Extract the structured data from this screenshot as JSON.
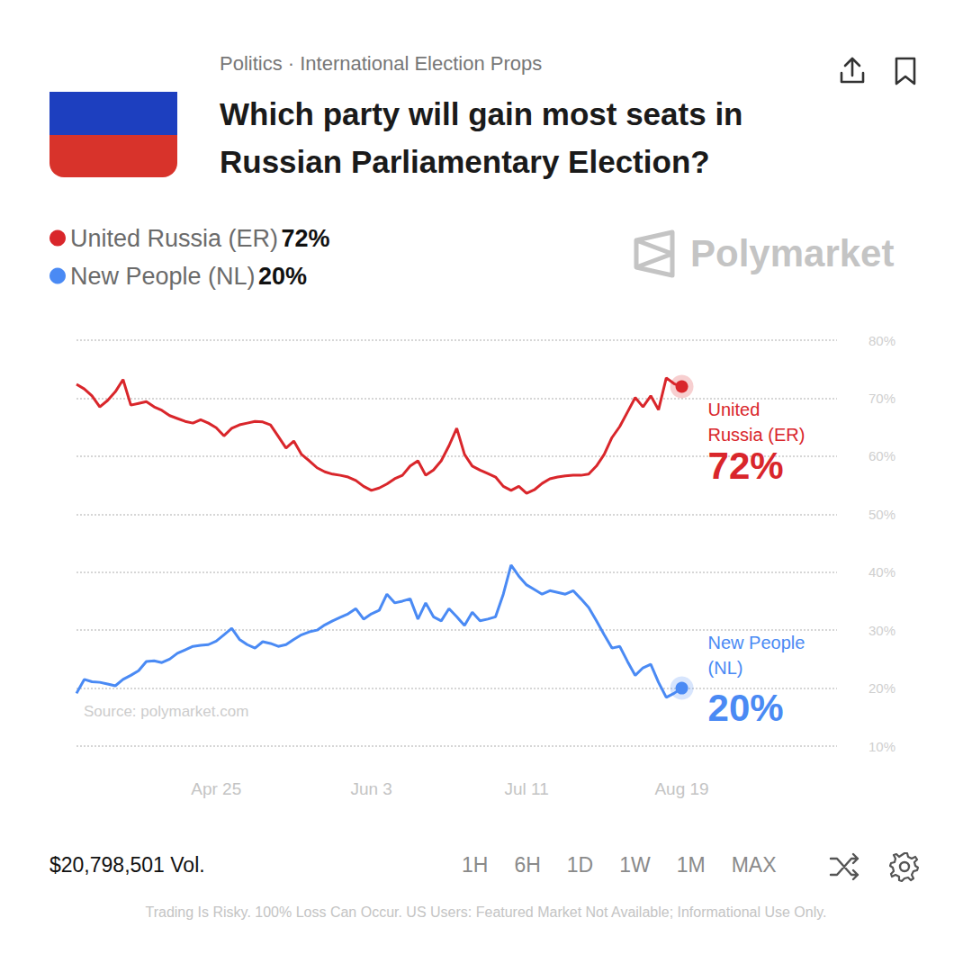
{
  "header": {
    "category": "Politics · International Election Props",
    "title": "Which party will gain most seats in Russian Parliamentary Election?"
  },
  "watermark": "Polymarket",
  "chart_data": {
    "type": "line",
    "source": "Source: polymarket.com",
    "categories": [
      null,
      null,
      null,
      null,
      null,
      null,
      null,
      null,
      null,
      null,
      null,
      null,
      null,
      null,
      null,
      null,
      null,
      null,
      "Apr 25",
      null,
      null,
      null,
      null,
      null,
      null,
      null,
      null,
      null,
      null,
      null,
      null,
      null,
      null,
      null,
      null,
      null,
      null,
      null,
      "Jun 3",
      null,
      null,
      null,
      null,
      null,
      null,
      null,
      null,
      null,
      null,
      null,
      null,
      null,
      null,
      null,
      null,
      null,
      null,
      null,
      "Jul 11",
      null,
      null,
      null,
      null,
      null,
      null,
      null,
      null,
      null,
      null,
      null,
      null,
      null,
      null,
      null,
      null,
      null,
      null,
      null,
      "Aug 19",
      null,
      null,
      null,
      null,
      null,
      null,
      null,
      null,
      null,
      null,
      null,
      null,
      null,
      null,
      null,
      null,
      null,
      null,
      null,
      null
    ],
    "series": [
      {
        "name": "United Russia (ER)",
        "color": "#d9262b",
        "current": {
          "value": 72,
          "label": "72%"
        },
        "values": [
          72.4,
          71.6,
          70.4,
          68.5,
          69.6,
          71.1,
          73.2,
          68.8,
          69.1,
          69.4,
          68.5,
          67.9,
          67.0,
          66.5,
          66.0,
          65.7,
          66.3,
          65.7,
          64.9,
          63.5,
          64.8,
          65.4,
          65.7,
          66.0,
          65.9,
          65.4,
          63.4,
          61.4,
          62.6,
          60.3,
          59.2,
          58.0,
          57.3,
          56.9,
          56.7,
          56.4,
          55.8,
          54.8,
          54.1,
          54.5,
          55.2,
          56.1,
          56.7,
          58.3,
          59.2,
          56.7,
          57.6,
          59.2,
          61.8,
          64.8,
          60.3,
          58.3,
          57.6,
          57.0,
          56.4,
          54.8,
          54.1,
          54.8,
          53.6,
          54.2,
          55.3,
          56.1,
          56.4,
          56.6,
          56.7,
          56.7,
          56.9,
          58.3,
          60.3,
          63.2,
          65.1,
          67.6,
          70.1,
          68.5,
          70.4,
          68.0,
          73.5,
          72.5,
          72,
          null,
          null,
          null,
          null,
          null,
          null,
          null,
          null,
          null,
          null,
          null,
          null,
          null,
          null,
          null,
          null,
          null,
          null,
          null,
          null
        ]
      },
      {
        "name": "New People (NL)",
        "color": "#4a8af4",
        "current": {
          "value": 20,
          "label": "20%"
        },
        "values": [
          19.1,
          21.5,
          21.1,
          21.0,
          20.7,
          20.4,
          21.5,
          22.2,
          23.0,
          24.6,
          24.7,
          24.4,
          25.0,
          26.0,
          26.6,
          27.2,
          27.4,
          27.5,
          28.1,
          29.2,
          30.3,
          28.4,
          27.5,
          26.9,
          28.0,
          27.7,
          27.2,
          27.5,
          28.4,
          29.2,
          29.7,
          30.0,
          30.9,
          31.6,
          32.2,
          32.8,
          33.7,
          31.9,
          32.8,
          33.4,
          36.2,
          34.7,
          35.0,
          35.4,
          31.9,
          34.7,
          32.3,
          31.6,
          33.7,
          32.3,
          30.8,
          33.1,
          31.6,
          31.9,
          32.3,
          36.2,
          41.2,
          39.3,
          37.8,
          37.0,
          36.2,
          36.8,
          36.5,
          36.2,
          36.8,
          35.4,
          33.9,
          31.6,
          29.2,
          26.9,
          27.2,
          24.6,
          22.2,
          23.5,
          24.1,
          21.0,
          18.4,
          19.1,
          20,
          null,
          null,
          null,
          null,
          null,
          null,
          null,
          null,
          null,
          null,
          null,
          null,
          null,
          null,
          null,
          null,
          null,
          null,
          null,
          null
        ]
      }
    ],
    "ylim": [
      10,
      80
    ],
    "yticks": [
      {
        "value": 10,
        "label": "10%"
      },
      {
        "value": 20,
        "label": "20%"
      },
      {
        "value": 30,
        "label": "30%"
      },
      {
        "value": 40,
        "label": "40%"
      },
      {
        "value": 50,
        "label": "50%"
      },
      {
        "value": 60,
        "label": "60%"
      },
      {
        "value": 70,
        "label": "70%"
      },
      {
        "value": 80,
        "label": "80%"
      }
    ],
    "grid": true,
    "legend": "top-left"
  },
  "footer": {
    "volume": "$20,798,501 Vol.",
    "ranges": [
      "1H",
      "6H",
      "1D",
      "1W",
      "1M",
      "MAX"
    ],
    "disclaimer": "Trading Is Risky. 100% Loss Can Occur. US Users: Featured Market Not Available; Informational Use Only."
  }
}
